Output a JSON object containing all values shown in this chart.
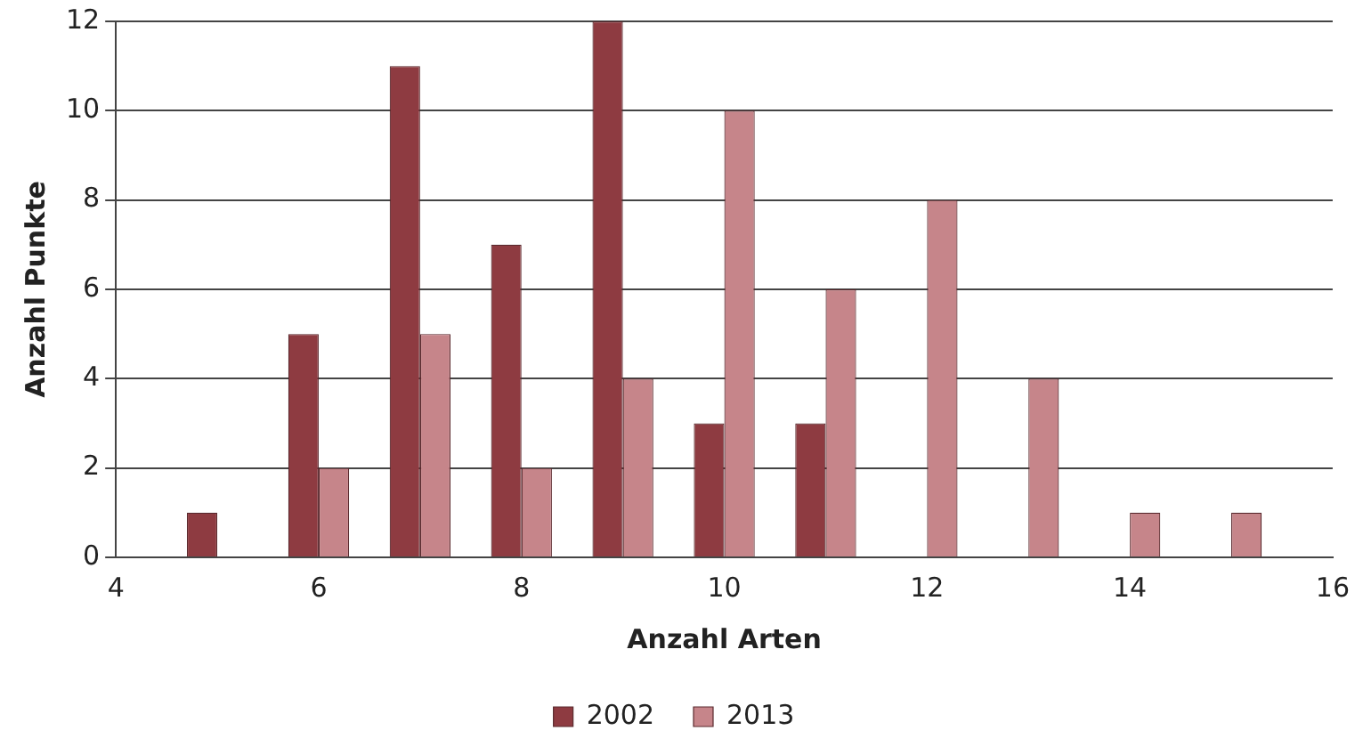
{
  "chart_data": {
    "type": "bar",
    "xlabel": "Anzahl Arten",
    "ylabel": "Anzahl Punkte",
    "series": [
      {
        "name": "2002",
        "color": "#8e3b41",
        "x": [
          5,
          6,
          7,
          8,
          9,
          10,
          11
        ],
        "values": [
          1,
          5,
          11,
          7,
          12,
          3,
          3
        ]
      },
      {
        "name": "2013",
        "color": "#c6858a",
        "x": [
          6,
          7,
          8,
          9,
          10,
          11,
          12,
          13,
          14,
          15
        ],
        "values": [
          2,
          5,
          2,
          4,
          10,
          6,
          8,
          4,
          1,
          1
        ]
      }
    ],
    "xlim": [
      4,
      16
    ],
    "xticks": [
      4,
      6,
      8,
      10,
      12,
      14,
      16
    ],
    "ylim": [
      0,
      12
    ],
    "yticks": [
      0,
      2,
      4,
      6,
      8,
      10,
      12
    ],
    "grid": "y",
    "legend": "bottom"
  }
}
